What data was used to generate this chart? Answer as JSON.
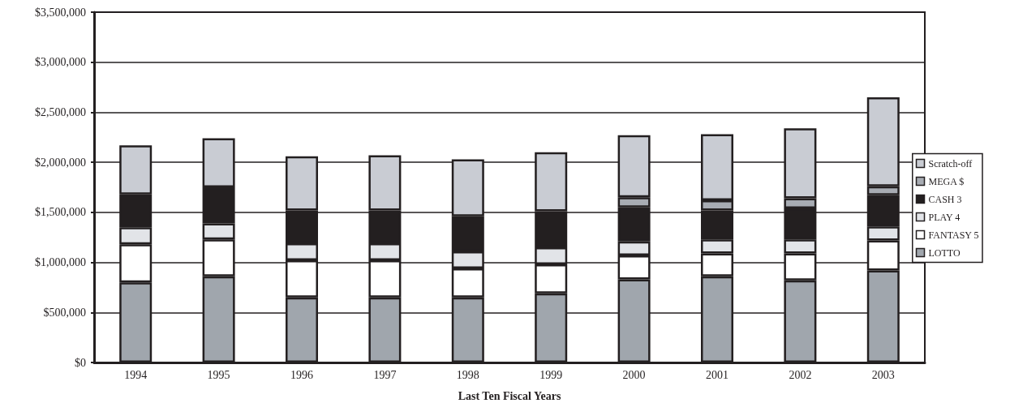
{
  "chart_data": {
    "type": "bar",
    "stacked": true,
    "xlabel": "Last Ten Fiscal Years",
    "categories": [
      "1994",
      "1995",
      "1996",
      "1997",
      "1998",
      "1999",
      "2000",
      "2001",
      "2002",
      "2003"
    ],
    "series": [
      {
        "name": "LOTTO",
        "color": "#a0a6ad",
        "values": [
          800000,
          860000,
          650000,
          650000,
          650000,
          690000,
          830000,
          860000,
          820000,
          920000
        ]
      },
      {
        "name": "FANTASY 5",
        "color": "#ffffff",
        "values": [
          380000,
          370000,
          370000,
          370000,
          290000,
          290000,
          240000,
          230000,
          270000,
          300000
        ]
      },
      {
        "name": "PLAY 4",
        "color": "#e2e4e8",
        "values": [
          170000,
          160000,
          170000,
          170000,
          170000,
          170000,
          140000,
          140000,
          140000,
          140000
        ]
      },
      {
        "name": "CASH 3",
        "color": "#231f20",
        "values": [
          330000,
          360000,
          330000,
          330000,
          350000,
          360000,
          340000,
          290000,
          310000,
          310000
        ]
      },
      {
        "name": "MEGA $",
        "color": "#a8acb3",
        "values": [
          null,
          null,
          null,
          null,
          null,
          null,
          100000,
          100000,
          100000,
          90000
        ]
      },
      {
        "name": "Scratch-off",
        "color": "#c9ccd3",
        "values": [
          490000,
          490000,
          540000,
          550000,
          570000,
          590000,
          620000,
          660000,
          700000,
          890000
        ]
      }
    ],
    "ylim": [
      0,
      3500000
    ],
    "yticks": [
      {
        "value": 0,
        "label": "$0"
      },
      {
        "value": 500000,
        "label": "$500,000"
      },
      {
        "value": 1000000,
        "label": "$1,000,000"
      },
      {
        "value": 1500000,
        "label": "$1,500,000"
      },
      {
        "value": 2000000,
        "label": "$2,000,000"
      },
      {
        "value": 2500000,
        "label": "$2,500,000"
      },
      {
        "value": 3000000,
        "label": "$3,000,000"
      },
      {
        "value": 3500000,
        "label": "$3,500,000"
      }
    ],
    "grid": "y",
    "legend": "right"
  }
}
